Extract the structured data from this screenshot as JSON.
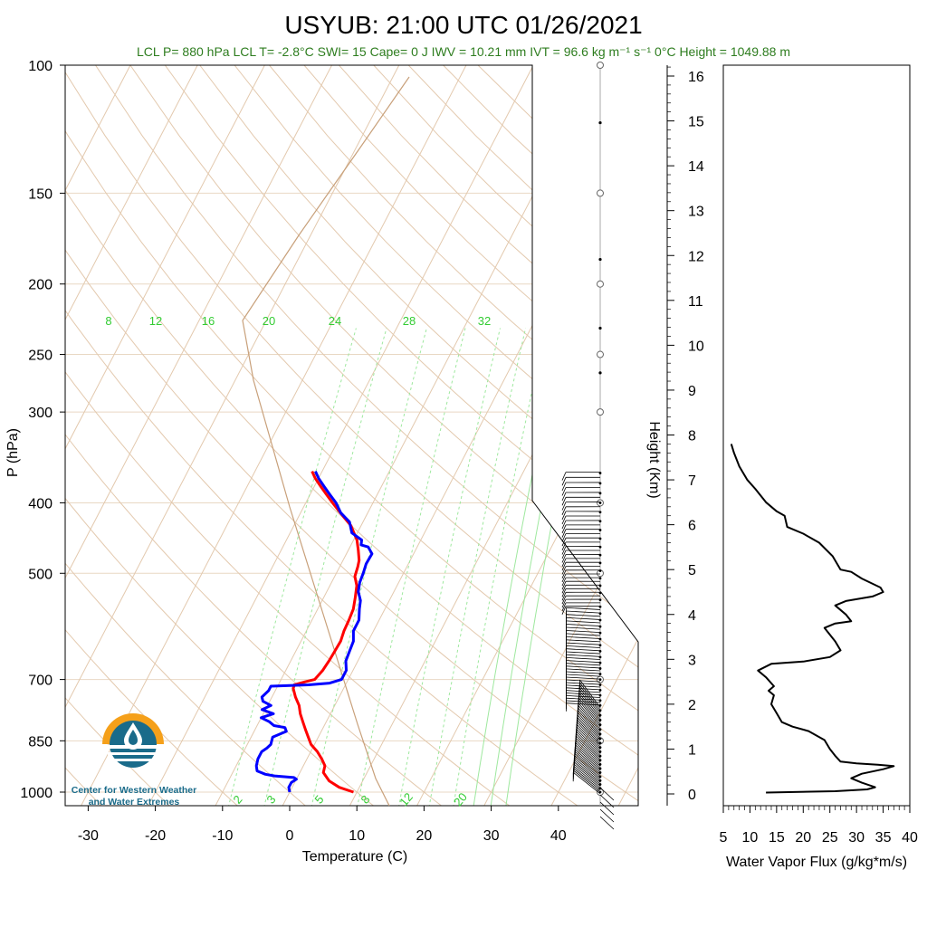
{
  "chart_data": [
    {
      "type": "line",
      "title": "USYUB: 21:00 UTC 01/26/2021",
      "subtitle": "LCL P= 880 hPa  LCL T= -2.8°C  SWI= 15  Cape= 0 J  IWV = 10.21 mm  IVT = 96.6 kg m⁻¹ s⁻¹  0°C Height = 1049.88 m",
      "xlabel": "Temperature (C)",
      "ylabel": "P (hPa)",
      "xlim": [
        -34,
        52
      ],
      "ylim": [
        1050,
        100
      ],
      "x_ticks": [
        "-30",
        "-20",
        "-10",
        "0",
        "10",
        "20",
        "30",
        "40"
      ],
      "x_tick_values": [
        -30,
        -20,
        -10,
        0,
        10,
        20,
        30,
        40
      ],
      "y_ticks": [
        "100",
        "150",
        "200",
        "250",
        "300",
        "400",
        "500",
        "700",
        "850",
        "1000"
      ],
      "y_tick_values": [
        100,
        150,
        200,
        250,
        300,
        400,
        500,
        700,
        850,
        1000
      ],
      "y_scale": "log",
      "grid": true,
      "mixing_ratio_labels": [
        "8",
        "12",
        "16",
        "20",
        "24",
        "28",
        "32"
      ],
      "mixing_ratio_values": [
        8,
        12,
        16,
        20,
        24,
        28,
        32
      ],
      "mixing_ratio_labels_bottom": [
        "2",
        "3",
        "5",
        "8",
        "12",
        "20"
      ],
      "mixing_ratio_values_bottom": [
        2,
        3,
        5,
        8,
        12,
        20
      ],
      "series": [
        {
          "color": "#ff0000",
          "points": [
            [
              9.5,
              1000
            ],
            [
              7,
              985
            ],
            [
              5,
              965
            ],
            [
              3.5,
              940
            ],
            [
              3.2,
              920
            ],
            [
              2.2,
              900
            ],
            [
              1,
              880
            ],
            [
              -0.5,
              860
            ],
            [
              -1.5,
              840
            ],
            [
              -2.5,
              820
            ],
            [
              -3.5,
              800
            ],
            [
              -4.5,
              780
            ],
            [
              -5.3,
              760
            ],
            [
              -6.5,
              740
            ],
            [
              -7.5,
              720
            ],
            [
              -7.6,
              712
            ],
            [
              -6.2,
              705
            ],
            [
              -5.0,
              700
            ],
            [
              -4.5,
              680
            ],
            [
              -4.3,
              660
            ],
            [
              -4.2,
              640
            ],
            [
              -4.1,
              620
            ],
            [
              -4.4,
              600
            ],
            [
              -4.5,
              580
            ],
            [
              -4.7,
              560
            ],
            [
              -5.3,
              540
            ],
            [
              -6.0,
              520
            ],
            [
              -7.0,
              505
            ],
            [
              -7.3,
              490
            ],
            [
              -7.6,
              480
            ],
            [
              -8.5,
              465
            ],
            [
              -9.5,
              450
            ],
            [
              -10.5,
              440
            ],
            [
              -11.5,
              430
            ],
            [
              -13,
              420
            ],
            [
              -14.5,
              410
            ],
            [
              -16,
              400
            ],
            [
              -17.5,
              390
            ],
            [
              -19,
              380
            ],
            [
              -20.5,
              370
            ],
            [
              -21.5,
              362
            ]
          ]
        },
        {
          "color": "#0000ff",
          "points": [
            [
              0,
              1000
            ],
            [
              -0.5,
              985
            ],
            [
              -0.5,
              970
            ],
            [
              0,
              960
            ],
            [
              -0.5,
              955
            ],
            [
              -3.5,
              950
            ],
            [
              -5,
              945
            ],
            [
              -6.5,
              935
            ],
            [
              -7,
              920
            ],
            [
              -7.3,
              900
            ],
            [
              -7.3,
              880
            ],
            [
              -6.8,
              870
            ],
            [
              -6.5,
              860
            ],
            [
              -6.8,
              840
            ],
            [
              -5.2,
              825
            ],
            [
              -5.7,
              815
            ],
            [
              -7.5,
              810
            ],
            [
              -8.5,
              800
            ],
            [
              -10,
              790
            ],
            [
              -8.5,
              780
            ],
            [
              -10.5,
              770
            ],
            [
              -9.5,
              760
            ],
            [
              -11,
              750
            ],
            [
              -11.5,
              740
            ],
            [
              -11,
              725
            ],
            [
              -11,
              715
            ],
            [
              -5.5,
              712
            ],
            [
              -2.5,
              708
            ],
            [
              -1.0,
              700
            ],
            [
              -1.0,
              680
            ],
            [
              -1.8,
              660
            ],
            [
              -2.0,
              640
            ],
            [
              -2.2,
              620
            ],
            [
              -3.0,
              600
            ],
            [
              -3.0,
              580
            ],
            [
              -3.8,
              560
            ],
            [
              -4.3,
              545
            ],
            [
              -5.3,
              530
            ],
            [
              -5.8,
              515
            ],
            [
              -6.0,
              500
            ],
            [
              -6.3,
              485
            ],
            [
              -6.2,
              470
            ],
            [
              -7.3,
              460
            ],
            [
              -8.5,
              457
            ],
            [
              -8.8,
              450
            ],
            [
              -10.8,
              440
            ],
            [
              -12,
              425
            ],
            [
              -14,
              413
            ],
            [
              -15.5,
              400
            ],
            [
              -17,
              390
            ],
            [
              -18.5,
              380
            ],
            [
              -20,
              370
            ],
            [
              -21,
              362
            ]
          ]
        }
      ]
    },
    {
      "type": "line",
      "xlabel": "Water Vapor Flux (g/kg*m/s)",
      "ylabel": "Height (Km)",
      "xlim": [
        5,
        40
      ],
      "ylim": [
        -0.3,
        16.3
      ],
      "x_ticks": [
        "5",
        "10",
        "15",
        "20",
        "25",
        "30",
        "35",
        "40"
      ],
      "x_tick_values": [
        5,
        10,
        15,
        20,
        25,
        30,
        35,
        40
      ],
      "y_ticks": [
        "0",
        "1",
        "2",
        "3",
        "4",
        "5",
        "6",
        "7",
        "8",
        "9",
        "10",
        "11",
        "12",
        "13",
        "14",
        "15",
        "16"
      ],
      "y_tick_values": [
        0,
        1,
        2,
        3,
        4,
        5,
        6,
        7,
        8,
        9,
        10,
        11,
        12,
        13,
        14,
        15,
        16
      ],
      "series": [
        {
          "color": "#000000",
          "points": [
            [
              13,
              0.03
            ],
            [
              26,
              0.06
            ],
            [
              32,
              0.1
            ],
            [
              33.5,
              0.15
            ],
            [
              31,
              0.25
            ],
            [
              29,
              0.35
            ],
            [
              31,
              0.45
            ],
            [
              33,
              0.5
            ],
            [
              35,
              0.55
            ],
            [
              37,
              0.62
            ],
            [
              34,
              0.65
            ],
            [
              30,
              0.68
            ],
            [
              27,
              0.72
            ],
            [
              26,
              0.85
            ],
            [
              25,
              1.0
            ],
            [
              24,
              1.2
            ],
            [
              21,
              1.4
            ],
            [
              18,
              1.5
            ],
            [
              16,
              1.6
            ],
            [
              15,
              1.8
            ],
            [
              14,
              2.0
            ],
            [
              14.5,
              2.2
            ],
            [
              13.5,
              2.3
            ],
            [
              14.5,
              2.4
            ],
            [
              13,
              2.6
            ],
            [
              11.5,
              2.75
            ],
            [
              14,
              2.9
            ],
            [
              20,
              2.95
            ],
            [
              25,
              3.05
            ],
            [
              27,
              3.2
            ],
            [
              26,
              3.4
            ],
            [
              24,
              3.7
            ],
            [
              26,
              3.8
            ],
            [
              29,
              3.85
            ],
            [
              28,
              4.0
            ],
            [
              26,
              4.2
            ],
            [
              28,
              4.3
            ],
            [
              33,
              4.4
            ],
            [
              35,
              4.5
            ],
            [
              34.5,
              4.6
            ],
            [
              31,
              4.8
            ],
            [
              29,
              4.95
            ],
            [
              27,
              5.0
            ],
            [
              25.5,
              5.3
            ],
            [
              23,
              5.6
            ],
            [
              20,
              5.8
            ],
            [
              17,
              5.95
            ],
            [
              16.5,
              6.2
            ],
            [
              15,
              6.3
            ],
            [
              13,
              6.5
            ],
            [
              11,
              6.8
            ],
            [
              9.5,
              7.0
            ],
            [
              8,
              7.3
            ],
            [
              7,
              7.6
            ],
            [
              6.5,
              7.8
            ]
          ]
        }
      ]
    }
  ]
}
